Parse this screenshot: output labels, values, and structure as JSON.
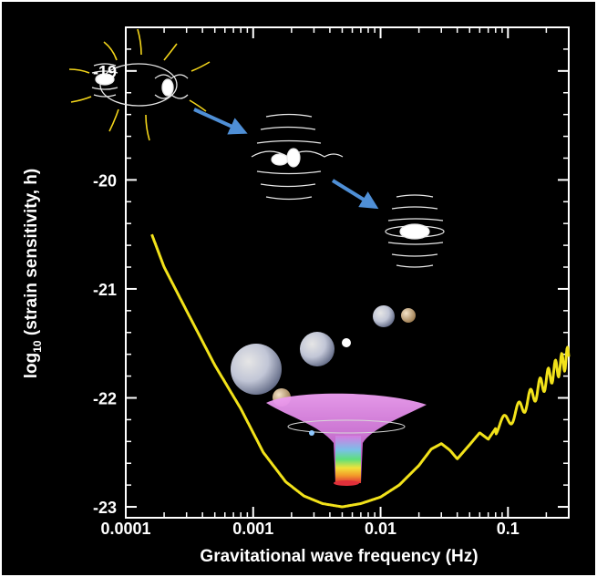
{
  "chart_data": {
    "type": "line",
    "title": "",
    "xlabel": "Gravitational wave frequency (Hz)",
    "ylabel": "log10 (strain sensitivity, h)",
    "ylabel_parts": {
      "prefix": "log",
      "sub": "10",
      "suffix": " (strain sensitivity, h)"
    },
    "x_scale": "log",
    "xlim": [
      0.0001,
      0.3
    ],
    "ylim": [
      -23.1,
      -18.6
    ],
    "xticks": [
      0.0001,
      0.001,
      0.01,
      0.1
    ],
    "xtick_labels": [
      "0.0001",
      "0.001",
      "0.01",
      "0.1"
    ],
    "yticks": [
      -19,
      -20,
      -21,
      -22,
      -23
    ],
    "ytick_labels": [
      "-19",
      "-20",
      "-21",
      "-22",
      "-23"
    ],
    "grid": false,
    "colors": {
      "background": "#000000",
      "curve": "#f2e21a",
      "axes": "#ffffff",
      "arrow": "#4f8fd6"
    },
    "series": [
      {
        "x": [
          0.00016,
          0.0002,
          0.0003,
          0.0005,
          0.0008,
          0.0012,
          0.0018,
          0.0025,
          0.0035,
          0.005,
          0.007,
          0.01,
          0.014,
          0.02,
          0.025,
          0.03,
          0.035,
          0.04,
          0.05,
          0.06,
          0.07,
          0.08,
          0.1,
          0.13,
          0.17,
          0.22,
          0.3
        ],
        "y": [
          -20.5,
          -20.8,
          -21.2,
          -21.7,
          -22.1,
          -22.5,
          -22.77,
          -22.9,
          -22.97,
          -23.0,
          -22.97,
          -22.91,
          -22.8,
          -22.62,
          -22.47,
          -22.42,
          -22.48,
          -22.56,
          -22.43,
          -22.32,
          -22.38,
          -22.28,
          -22.2,
          -22.08,
          -21.93,
          -21.78,
          -21.62
        ]
      }
    ]
  },
  "illustrations": {
    "top_left": "binary-stars-radiating-icon",
    "middle": "merging-binary-icon",
    "right": "merged-star-icon",
    "spheres": "stellar-spheres-icon",
    "funnel": "black-hole-funnel-icon"
  }
}
